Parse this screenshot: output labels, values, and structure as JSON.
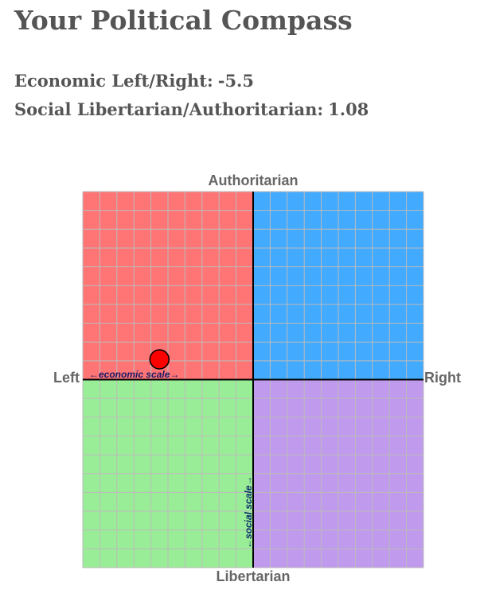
{
  "page": {
    "title": "Your Political Compass"
  },
  "scores": {
    "economic_label": "Economic Left/Right:",
    "economic_value": "-5.5",
    "social_label": "Social Libertarian/Authoritarian:",
    "social_value": "1.08"
  },
  "chart_data": {
    "type": "scatter",
    "title": "",
    "x_axis": {
      "min": -10,
      "max": 10,
      "left_label": "Left",
      "right_label": "Right",
      "scale_label": "←economic scale→"
    },
    "y_axis": {
      "min": -10,
      "max": 10,
      "top_label": "Authoritarian",
      "bottom_label": "Libertarian",
      "scale_label": "←social scale→"
    },
    "grid": true,
    "grid_divisions": 20,
    "quadrants": [
      {
        "name": "authoritarian-left",
        "color": "#ff7575"
      },
      {
        "name": "authoritarian-right",
        "color": "#42aaff"
      },
      {
        "name": "libertarian-left",
        "color": "#9aed97"
      },
      {
        "name": "libertarian-right",
        "color": "#c09aec"
      }
    ],
    "grid_color": "#bbbbbb",
    "axis_color": "#000000",
    "points": [
      {
        "x": -5.5,
        "y": 1.08,
        "color": "#ff0000"
      }
    ]
  }
}
